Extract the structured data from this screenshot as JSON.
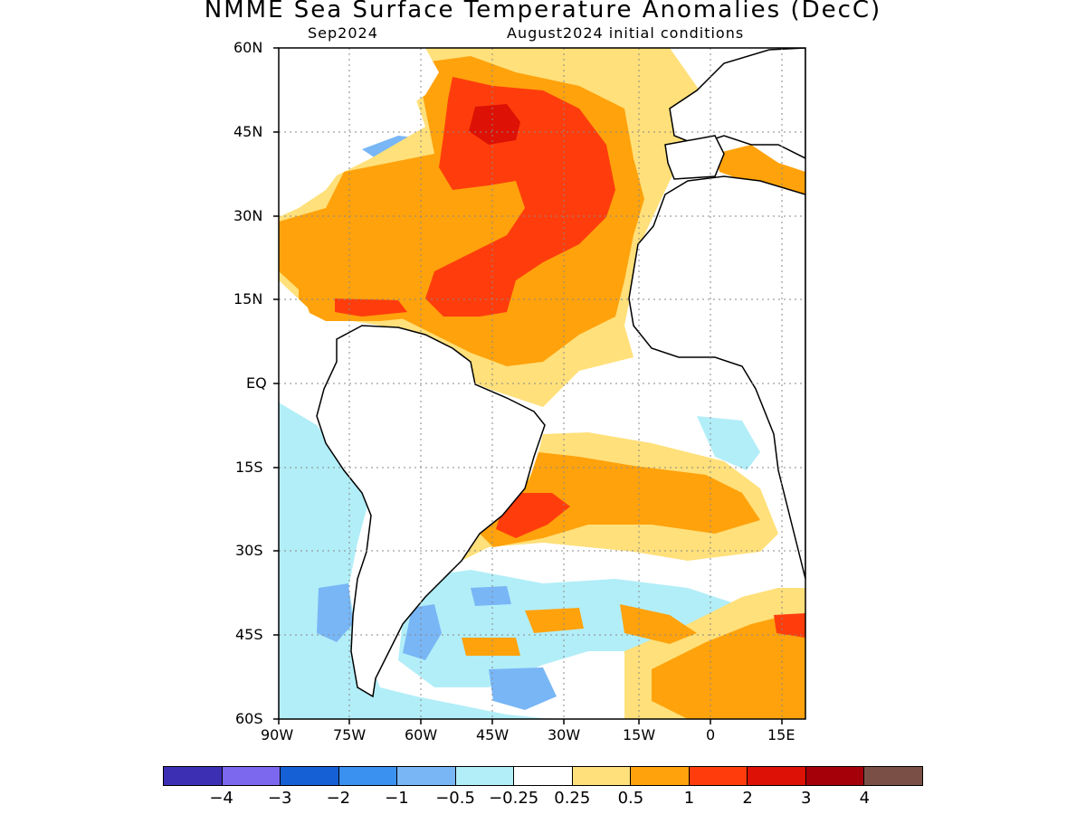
{
  "title": "NMME Sea Surface Temperature Anomalies (DecC)",
  "subtitle_left": "Sep2024",
  "subtitle_right": "August2024 initial conditions",
  "lat_ticks": [
    "60N",
    "45N",
    "30N",
    "15N",
    "EQ",
    "15S",
    "30S",
    "45S",
    "60S"
  ],
  "lon_ticks": [
    "90W",
    "75W",
    "60W",
    "45W",
    "30W",
    "15W",
    "0",
    "15E"
  ],
  "colorbar": {
    "colors": [
      "#3c2fb4",
      "#7b68ee",
      "#1660d6",
      "#3a91f0",
      "#78b6f6",
      "#b2eef8",
      "#ffffff",
      "#ffe07a",
      "#ffa20c",
      "#ff3d0c",
      "#dd1105",
      "#a5000a",
      "#7a5046"
    ],
    "labels": [
      "−4",
      "−3",
      "−2",
      "−1",
      "−0.5",
      "−0.25",
      "0.25",
      "0.5",
      "1",
      "2",
      "3",
      "4"
    ]
  }
}
